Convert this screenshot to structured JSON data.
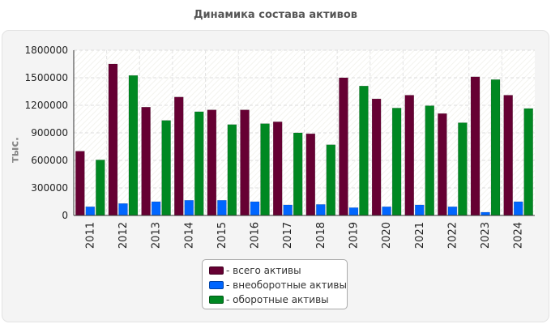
{
  "title": "Динамика состава активов",
  "chart_data": {
    "type": "bar",
    "title": "Динамика состава активов",
    "ylabel": "тыс.",
    "xlabel": "",
    "ylim": [
      0,
      1800000
    ],
    "yticks": [
      0,
      300000,
      600000,
      900000,
      1200000,
      1500000,
      1800000
    ],
    "ytick_labels": [
      "0",
      "300000",
      "600000",
      "900000",
      "1200000",
      "1500000",
      "1800000"
    ],
    "grid": true,
    "legend_position": "bottom-center",
    "categories": [
      "2011",
      "2012",
      "2013",
      "2014",
      "2015",
      "2016",
      "2017",
      "2018",
      "2019",
      "2020",
      "2021",
      "2022",
      "2023",
      "2024"
    ],
    "series": [
      {
        "name": "всего активы",
        "legend_label": "- всего активы",
        "color": "#660033",
        "values": [
          700000,
          1650000,
          1180000,
          1290000,
          1150000,
          1150000,
          1020000,
          890000,
          1500000,
          1270000,
          1310000,
          1110000,
          1510000,
          1310000
        ]
      },
      {
        "name": "внеоборотные активы",
        "legend_label": "- внеоборотные активы",
        "color": "#0066ff",
        "values": [
          95000,
          130000,
          150000,
          165000,
          165000,
          150000,
          115000,
          120000,
          85000,
          95000,
          115000,
          95000,
          35000,
          150000
        ]
      },
      {
        "name": "оборотные активы",
        "legend_label": "- оборотные активы",
        "color": "#008822",
        "values": [
          605000,
          1525000,
          1035000,
          1130000,
          990000,
          1000000,
          900000,
          770000,
          1410000,
          1170000,
          1195000,
          1010000,
          1480000,
          1165000
        ]
      }
    ]
  }
}
